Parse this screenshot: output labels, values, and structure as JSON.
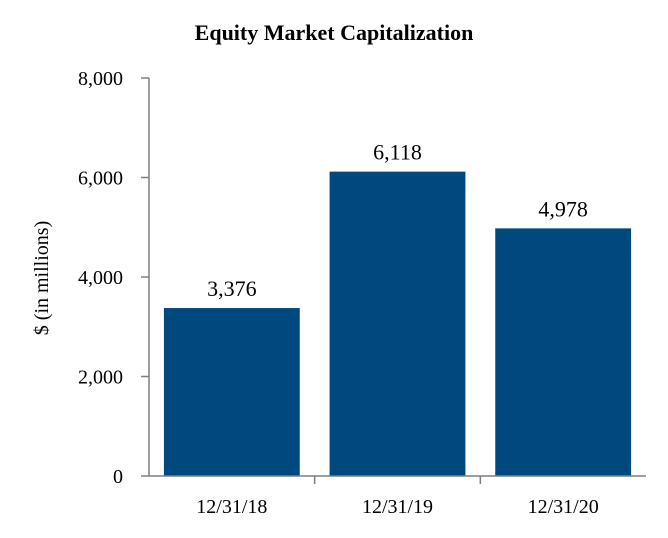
{
  "chart_data": {
    "type": "bar",
    "title": "Equity Market Capitalization",
    "xlabel": "",
    "ylabel": "$ (in millions)",
    "categories": [
      "12/31/18",
      "12/31/19",
      "12/31/20"
    ],
    "values": [
      3376,
      6118,
      4978
    ],
    "value_labels": [
      "3,376",
      "6,118",
      "4,978"
    ],
    "ylim": [
      0,
      8000
    ],
    "yticks": [
      0,
      2000,
      4000,
      6000,
      8000
    ],
    "ytick_labels": [
      "0",
      "2,000",
      "4,000",
      "6,000",
      "8,000"
    ],
    "grid": false,
    "legend": "none",
    "bar_color": "#00497E"
  }
}
